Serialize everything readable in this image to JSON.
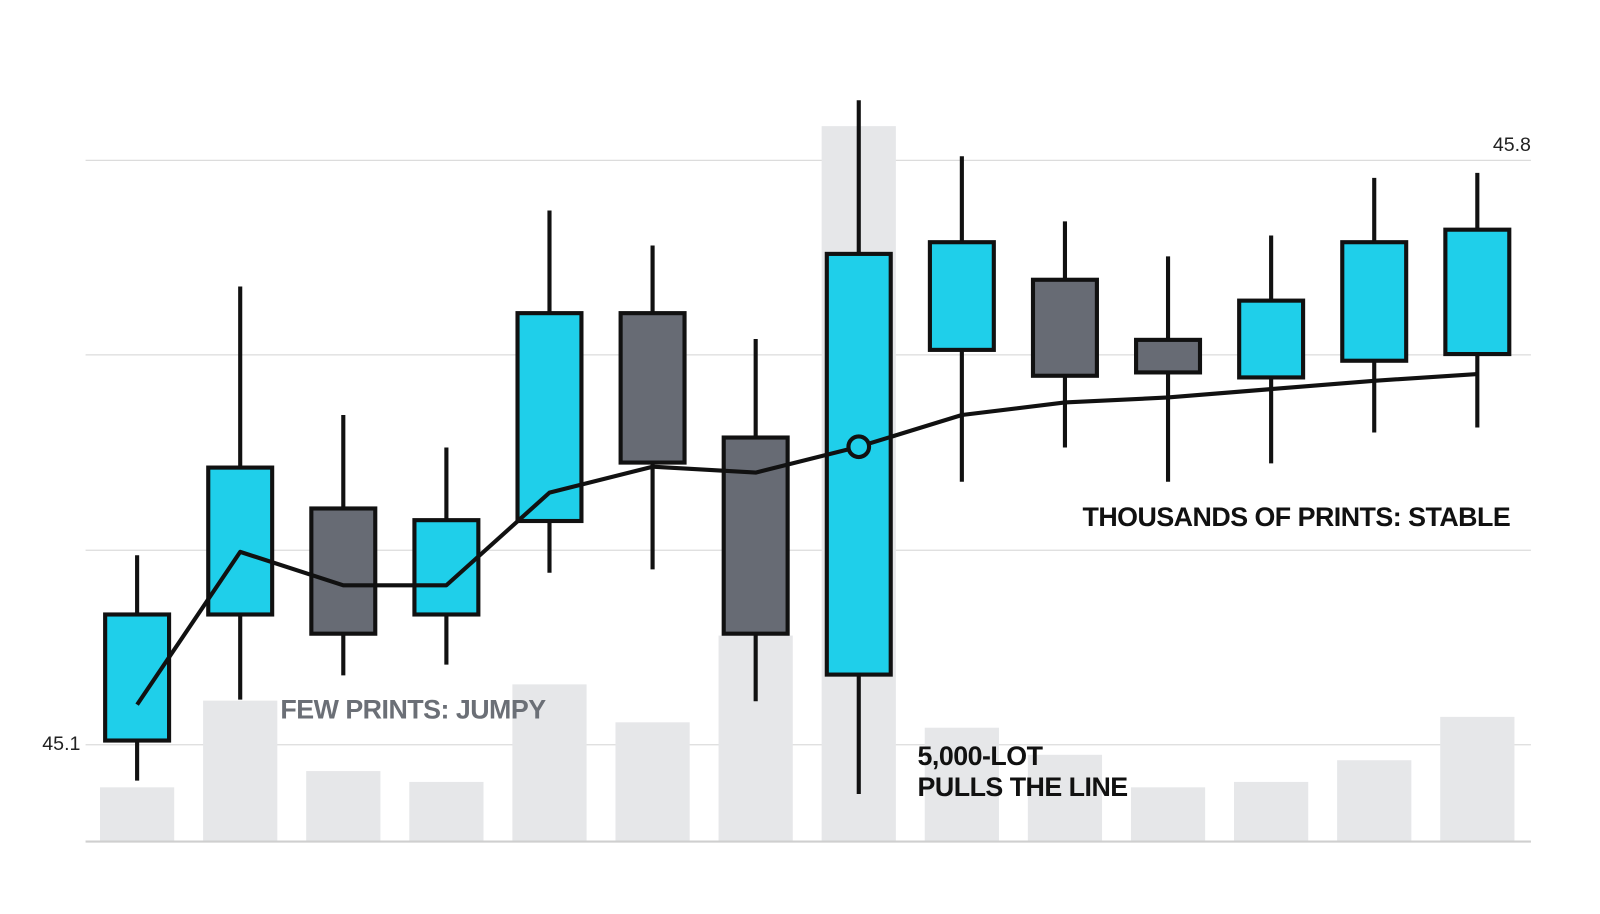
{
  "chart_data": {
    "type": "candlestick",
    "open": [
      45.105,
      45.256,
      45.383,
      45.256,
      45.368,
      45.617,
      45.468,
      45.184,
      45.573,
      45.657,
      45.585,
      45.54,
      45.56,
      45.568
    ],
    "high": [
      45.327,
      45.649,
      45.495,
      45.456,
      45.74,
      45.698,
      45.586,
      45.872,
      45.805,
      45.727,
      45.685,
      45.71,
      45.779,
      45.785
    ],
    "low": [
      45.057,
      45.154,
      45.183,
      45.196,
      45.306,
      45.31,
      45.152,
      45.041,
      45.415,
      45.456,
      45.415,
      45.437,
      45.474,
      45.48
    ],
    "close": [
      45.256,
      45.432,
      45.233,
      45.369,
      45.617,
      45.438,
      45.233,
      45.688,
      45.702,
      45.542,
      45.546,
      45.632,
      45.702,
      45.717
    ],
    "up_color": "#1fcfea",
    "down_color": "#676b74",
    "line": {
      "values": [
        45.148,
        45.331,
        45.291,
        45.291,
        45.402,
        45.433,
        45.426,
        45.457,
        45.495,
        45.51,
        45.516,
        45.526,
        45.536,
        45.544
      ],
      "color": "#111111",
      "marker_index": 7
    },
    "volume": {
      "values": [
        10,
        26,
        13,
        11,
        29,
        22,
        38,
        132,
        21,
        16,
        10,
        11,
        15,
        23
      ],
      "color": "#e6e7e9",
      "ylim": [
        0,
        140
      ]
    },
    "ylim": [
      44.984,
      45.893
    ],
    "yticks": [
      45.1,
      {
        "value": 45.333,
        "label": null
      },
      {
        "value": 45.567,
        "label": null
      },
      45.8
    ],
    "grid": true,
    "annotations": [
      {
        "text": [
          "FEW PRINTS: JUMPY"
        ],
        "color": "#6b6f76",
        "index": 1
      },
      {
        "text": [
          "5,000-LOT",
          "PULLS THE LINE"
        ],
        "color": "#111111",
        "index": 7
      },
      {
        "text": [
          "THOUSANDS OF PRINTS: STABLE"
        ],
        "color": "#111111",
        "index": 9
      }
    ]
  }
}
